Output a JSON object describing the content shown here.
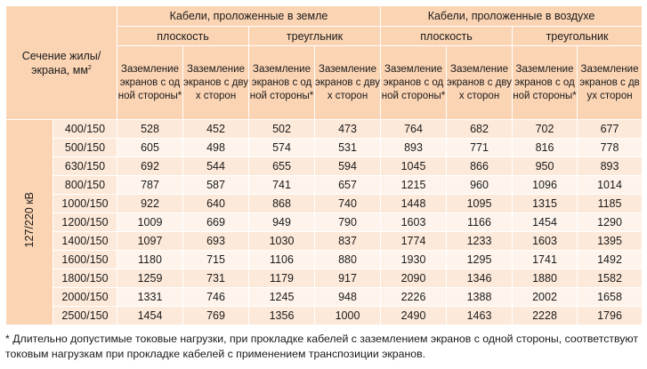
{
  "table": {
    "corner_label": "Сечение жилы/экрана, мм",
    "corner_sup": "2",
    "side_label": "127/220 кВ",
    "groups": [
      {
        "label": "Кабели, проложенные в земле",
        "subgroups": [
          {
            "label": "плоскость",
            "columns": [
              "Заземление экранов с одной стороны*",
              "Заземление экранов с двух сторон"
            ]
          },
          {
            "label": "треугльник",
            "columns": [
              "Заземление экранов с одной стороны*",
              "Заземление экранов с двух сторон"
            ]
          }
        ]
      },
      {
        "label": "Кабели, проложенные в воздухе",
        "subgroups": [
          {
            "label": "плоскость",
            "columns": [
              "Заземление экранов с одной стороны*",
              "Заземление экранов с двух сторон"
            ]
          },
          {
            "label": "треугольник",
            "columns": [
              "Заземление экранов с одной стороны*",
              "Заземление экранов с двух сторон"
            ]
          }
        ]
      }
    ],
    "rows": [
      {
        "section": "400/150",
        "values": [
          "528",
          "452",
          "502",
          "473",
          "764",
          "682",
          "702",
          "677"
        ]
      },
      {
        "section": "500/150",
        "values": [
          "605",
          "498",
          "574",
          "531",
          "893",
          "771",
          "816",
          "778"
        ]
      },
      {
        "section": "630/150",
        "values": [
          "692",
          "544",
          "655",
          "594",
          "1045",
          "866",
          "950",
          "893"
        ]
      },
      {
        "section": "800/150",
        "values": [
          "787",
          "587",
          "741",
          "657",
          "1215",
          "960",
          "1096",
          "1014"
        ]
      },
      {
        "section": "1000/150",
        "values": [
          "922",
          "640",
          "868",
          "740",
          "1448",
          "1095",
          "1315",
          "1185"
        ]
      },
      {
        "section": "1200/150",
        "values": [
          "1009",
          "669",
          "949",
          "790",
          "1603",
          "1166",
          "1454",
          "1290"
        ]
      },
      {
        "section": "1400/150",
        "values": [
          "1097",
          "693",
          "1030",
          "837",
          "1774",
          "1233",
          "1603",
          "1395"
        ]
      },
      {
        "section": "1600/150",
        "values": [
          "1180",
          "715",
          "1106",
          "880",
          "1930",
          "1295",
          "1741",
          "1492"
        ]
      },
      {
        "section": "1800/150",
        "values": [
          "1259",
          "731",
          "1179",
          "917",
          "2090",
          "1346",
          "1880",
          "1582"
        ]
      },
      {
        "section": "2000/150",
        "values": [
          "1331",
          "746",
          "1245",
          "948",
          "2226",
          "1388",
          "2002",
          "1658"
        ]
      },
      {
        "section": "2500/150",
        "values": [
          "1454",
          "769",
          "1356",
          "1000",
          "2490",
          "1463",
          "2228",
          "1796"
        ]
      }
    ]
  },
  "footnote": "* Длительно допустимые токовые нагрузки, при прокладке кабелей с заземлением экранов с одной стороны, соответствуют токовым нагрузкам при прокладке кабелей с применением транспозиции экранов.",
  "colors": {
    "header_bg": "#fbd4b4",
    "row_odd": "#fde9d9",
    "row_even": "#fef4ec"
  }
}
